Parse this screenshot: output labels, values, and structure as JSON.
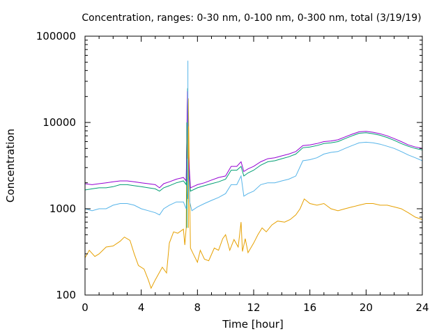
{
  "chart_data": {
    "type": "line",
    "title": "Concentration, ranges: 0-30 nm, 0-100 nm, 0-300 nm, total (3/19/19)",
    "xlabel": "Time [hour]",
    "ylabel": "Concentration",
    "xlim": [
      0,
      24
    ],
    "ylim": [
      100,
      100000
    ],
    "yscale": "log",
    "grid": false,
    "legend": "none",
    "xticks": [
      0,
      4,
      8,
      12,
      16,
      20,
      24
    ],
    "xtick_labels": [
      "0",
      "4",
      "8",
      "12",
      "16",
      "20",
      "24"
    ],
    "yticks": [
      100,
      1000,
      10000,
      100000
    ],
    "ytick_labels": [
      "100",
      "1000",
      "10000",
      "100000"
    ],
    "series": [
      {
        "color": "#e6a000",
        "points": [
          [
            0,
            270
          ],
          [
            0.3,
            330
          ],
          [
            0.7,
            280
          ],
          [
            1,
            300
          ],
          [
            1.5,
            360
          ],
          [
            2,
            370
          ],
          [
            2.5,
            420
          ],
          [
            2.8,
            470
          ],
          [
            3.2,
            430
          ],
          [
            3.5,
            300
          ],
          [
            3.8,
            220
          ],
          [
            4.2,
            200
          ],
          [
            4.5,
            150
          ],
          [
            4.7,
            120
          ],
          [
            5,
            150
          ],
          [
            5.5,
            210
          ],
          [
            5.8,
            180
          ],
          [
            6,
            400
          ],
          [
            6.3,
            540
          ],
          [
            6.6,
            520
          ],
          [
            7,
            580
          ],
          [
            7.1,
            380
          ],
          [
            7.2,
            600
          ],
          [
            7.25,
            10000
          ],
          [
            7.3,
            3800
          ],
          [
            7.35,
            19000
          ],
          [
            7.4,
            5000
          ],
          [
            7.5,
            350
          ],
          [
            7.7,
            300
          ],
          [
            8,
            240
          ],
          [
            8.2,
            330
          ],
          [
            8.5,
            260
          ],
          [
            8.8,
            250
          ],
          [
            9.2,
            350
          ],
          [
            9.5,
            330
          ],
          [
            9.8,
            450
          ],
          [
            10,
            500
          ],
          [
            10.3,
            330
          ],
          [
            10.6,
            440
          ],
          [
            10.9,
            360
          ],
          [
            11.1,
            700
          ],
          [
            11.2,
            320
          ],
          [
            11.4,
            450
          ],
          [
            11.6,
            310
          ],
          [
            12,
            400
          ],
          [
            12.3,
            500
          ],
          [
            12.6,
            600
          ],
          [
            12.9,
            540
          ],
          [
            13.3,
            650
          ],
          [
            13.7,
            720
          ],
          [
            14.2,
            700
          ],
          [
            14.6,
            750
          ],
          [
            15,
            850
          ],
          [
            15.3,
            1000
          ],
          [
            15.6,
            1300
          ],
          [
            16,
            1150
          ],
          [
            16.5,
            1100
          ],
          [
            17,
            1150
          ],
          [
            17.5,
            1000
          ],
          [
            18,
            950
          ],
          [
            18.5,
            1000
          ],
          [
            19,
            1050
          ],
          [
            19.5,
            1100
          ],
          [
            20,
            1150
          ],
          [
            20.5,
            1150
          ],
          [
            21,
            1100
          ],
          [
            21.5,
            1100
          ],
          [
            22,
            1050
          ],
          [
            22.5,
            1000
          ],
          [
            23,
            900
          ],
          [
            23.5,
            800
          ],
          [
            24,
            750
          ]
        ]
      },
      {
        "color": "#56b4e9",
        "points": [
          [
            0,
            1000
          ],
          [
            0.5,
            950
          ],
          [
            1,
            1000
          ],
          [
            1.5,
            1000
          ],
          [
            2,
            1100
          ],
          [
            2.5,
            1150
          ],
          [
            3,
            1150
          ],
          [
            3.5,
            1100
          ],
          [
            4,
            1000
          ],
          [
            4.5,
            950
          ],
          [
            5,
            900
          ],
          [
            5.3,
            850
          ],
          [
            5.6,
            1000
          ],
          [
            6,
            1100
          ],
          [
            6.5,
            1200
          ],
          [
            7,
            1200
          ],
          [
            7.2,
            1000
          ],
          [
            7.3,
            1500
          ],
          [
            7.4,
            3000
          ],
          [
            7.45,
            1200
          ],
          [
            7.6,
            950
          ],
          [
            8,
            1050
          ],
          [
            8.5,
            1150
          ],
          [
            9,
            1250
          ],
          [
            9.5,
            1350
          ],
          [
            10,
            1500
          ],
          [
            10.4,
            1900
          ],
          [
            10.8,
            1900
          ],
          [
            11.1,
            2400
          ],
          [
            11.3,
            1400
          ],
          [
            11.6,
            1500
          ],
          [
            12,
            1600
          ],
          [
            12.5,
            1900
          ],
          [
            13,
            2000
          ],
          [
            13.5,
            2000
          ],
          [
            14,
            2100
          ],
          [
            14.5,
            2200
          ],
          [
            15,
            2400
          ],
          [
            15.5,
            3600
          ],
          [
            16,
            3700
          ],
          [
            16.5,
            3900
          ],
          [
            17,
            4300
          ],
          [
            17.5,
            4500
          ],
          [
            18,
            4600
          ],
          [
            18.5,
            5000
          ],
          [
            19,
            5400
          ],
          [
            19.5,
            5800
          ],
          [
            20,
            5900
          ],
          [
            20.5,
            5800
          ],
          [
            21,
            5600
          ],
          [
            21.5,
            5300
          ],
          [
            22,
            5000
          ],
          [
            22.5,
            4600
          ],
          [
            23,
            4200
          ],
          [
            23.5,
            3900
          ],
          [
            24,
            3600
          ]
        ]
      },
      {
        "color": "#009e73",
        "points": [
          [
            0,
            1650
          ],
          [
            0.5,
            1700
          ],
          [
            1,
            1750
          ],
          [
            1.5,
            1750
          ],
          [
            2,
            1800
          ],
          [
            2.5,
            1900
          ],
          [
            3,
            1900
          ],
          [
            3.5,
            1850
          ],
          [
            4,
            1800
          ],
          [
            4.5,
            1750
          ],
          [
            5,
            1700
          ],
          [
            5.3,
            1600
          ],
          [
            5.6,
            1750
          ],
          [
            6,
            1850
          ],
          [
            6.5,
            2000
          ],
          [
            7,
            2100
          ],
          [
            7.2,
            1900
          ],
          [
            7.25,
            8000
          ],
          [
            7.3,
            25000
          ],
          [
            7.35,
            4000
          ],
          [
            7.5,
            1600
          ],
          [
            8,
            1750
          ],
          [
            8.5,
            1850
          ],
          [
            9,
            1950
          ],
          [
            9.5,
            2050
          ],
          [
            10,
            2200
          ],
          [
            10.4,
            2800
          ],
          [
            10.8,
            2800
          ],
          [
            11.1,
            3100
          ],
          [
            11.3,
            2400
          ],
          [
            11.6,
            2600
          ],
          [
            12,
            2800
          ],
          [
            12.5,
            3200
          ],
          [
            13,
            3500
          ],
          [
            13.5,
            3600
          ],
          [
            14,
            3800
          ],
          [
            14.5,
            4000
          ],
          [
            15,
            4300
          ],
          [
            15.5,
            5100
          ],
          [
            16,
            5200
          ],
          [
            16.5,
            5400
          ],
          [
            17,
            5700
          ],
          [
            17.5,
            5800
          ],
          [
            18,
            6000
          ],
          [
            18.5,
            6500
          ],
          [
            19,
            7000
          ],
          [
            19.5,
            7500
          ],
          [
            20,
            7600
          ],
          [
            20.5,
            7400
          ],
          [
            21,
            7100
          ],
          [
            21.5,
            6700
          ],
          [
            22,
            6200
          ],
          [
            22.5,
            5700
          ],
          [
            23,
            5300
          ],
          [
            23.5,
            5000
          ],
          [
            24,
            4800
          ]
        ]
      },
      {
        "color": "#9400d3",
        "points": [
          [
            0,
            1950
          ],
          [
            0.5,
            1900
          ],
          [
            1,
            1950
          ],
          [
            1.5,
            2000
          ],
          [
            2,
            2050
          ],
          [
            2.5,
            2100
          ],
          [
            3,
            2100
          ],
          [
            3.5,
            2050
          ],
          [
            4,
            2000
          ],
          [
            4.5,
            1950
          ],
          [
            5,
            1900
          ],
          [
            5.3,
            1750
          ],
          [
            5.6,
            1950
          ],
          [
            6,
            2050
          ],
          [
            6.5,
            2200
          ],
          [
            7,
            2300
          ],
          [
            7.2,
            2100
          ],
          [
            7.25,
            7500
          ],
          [
            7.3,
            23000
          ],
          [
            7.35,
            4500
          ],
          [
            7.5,
            1750
          ],
          [
            8,
            1900
          ],
          [
            8.5,
            2000
          ],
          [
            9,
            2150
          ],
          [
            9.5,
            2300
          ],
          [
            10,
            2400
          ],
          [
            10.4,
            3100
          ],
          [
            10.8,
            3100
          ],
          [
            11.1,
            3500
          ],
          [
            11.3,
            2700
          ],
          [
            11.6,
            2900
          ],
          [
            12,
            3100
          ],
          [
            12.5,
            3500
          ],
          [
            13,
            3800
          ],
          [
            13.5,
            3900
          ],
          [
            14,
            4100
          ],
          [
            14.5,
            4300
          ],
          [
            15,
            4600
          ],
          [
            15.5,
            5400
          ],
          [
            16,
            5500
          ],
          [
            16.5,
            5700
          ],
          [
            17,
            6000
          ],
          [
            17.5,
            6100
          ],
          [
            18,
            6300
          ],
          [
            18.5,
            6800
          ],
          [
            19,
            7300
          ],
          [
            19.5,
            7800
          ],
          [
            20,
            7900
          ],
          [
            20.5,
            7700
          ],
          [
            21,
            7400
          ],
          [
            21.5,
            7000
          ],
          [
            22,
            6500
          ],
          [
            22.5,
            6000
          ],
          [
            23,
            5500
          ],
          [
            23.5,
            5200
          ],
          [
            24,
            5000
          ]
        ]
      }
    ],
    "spikes": [
      {
        "x": 7.25,
        "ymin": 600,
        "ymax": 10000,
        "color": "#009e73"
      },
      {
        "x": 7.32,
        "ymin": 1300,
        "ymax": 52000,
        "color": "#56b4e9"
      },
      {
        "x": 7.36,
        "ymin": 600,
        "ymax": 9000,
        "color": "#e6a000"
      }
    ]
  }
}
